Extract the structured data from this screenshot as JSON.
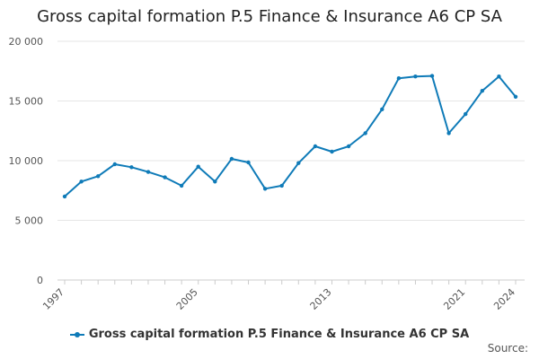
{
  "chart_data": {
    "type": "line",
    "title": "Gross capital formation P.5 Finance & Insurance A6 CP SA",
    "xlabel": "",
    "ylabel": "",
    "x": [
      1997,
      1998,
      1999,
      2000,
      2001,
      2002,
      2003,
      2004,
      2005,
      2006,
      2007,
      2008,
      2009,
      2010,
      2011,
      2012,
      2013,
      2014,
      2015,
      2016,
      2017,
      2018,
      2019,
      2020,
      2021,
      2022,
      2023,
      2024
    ],
    "xlim": [
      1997,
      2024
    ],
    "x_tick_values": [
      1997,
      2005,
      2013,
      2021,
      2024
    ],
    "x_tick_labels": [
      "1997",
      "2005",
      "2013",
      "2021",
      "2024"
    ],
    "ylim": [
      0,
      20000
    ],
    "y_tick_values": [
      0,
      5000,
      10000,
      15000,
      20000
    ],
    "y_tick_labels": [
      "0",
      "5 000",
      "10 000",
      "15 000",
      "20 000"
    ],
    "grid": true,
    "legend_position": "bottom",
    "series": [
      {
        "name": "Gross capital formation P.5 Finance & Insurance A6 CP SA",
        "color": "#0f7bb8",
        "values": [
          7000,
          8250,
          8700,
          9700,
          9450,
          9050,
          8600,
          7900,
          9500,
          8250,
          10150,
          9850,
          7650,
          7900,
          9800,
          11200,
          10750,
          11200,
          12300,
          14300,
          16900,
          17050,
          17100,
          12300,
          13900,
          15850,
          17050,
          15350
        ]
      }
    ]
  },
  "footer": {
    "source_label": "Source:"
  }
}
